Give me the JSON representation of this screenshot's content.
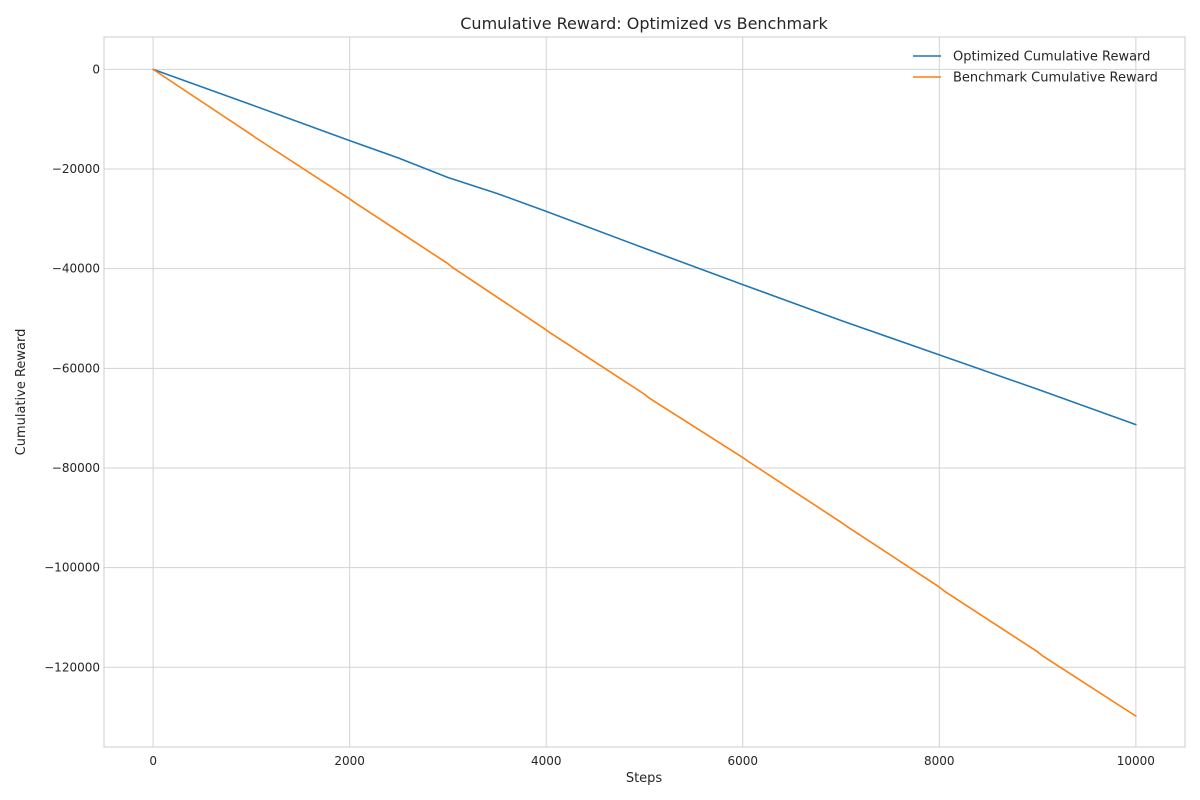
{
  "chart_data": {
    "type": "line",
    "title": "Cumulative Reward: Optimized vs Benchmark",
    "xlabel": "Steps",
    "ylabel": "Cumulative Reward",
    "xlim": [
      -500,
      10500
    ],
    "ylim": [
      -136000,
      6500
    ],
    "xticks": [
      0,
      2000,
      4000,
      6000,
      8000,
      10000
    ],
    "xtick_labels": [
      "0",
      "2000",
      "4000",
      "6000",
      "8000",
      "10000"
    ],
    "yticks": [
      0,
      -20000,
      -40000,
      -60000,
      -80000,
      -100000,
      -120000
    ],
    "ytick_labels": [
      "0",
      "−20000",
      "−40000",
      "−60000",
      "−80000",
      "−100000",
      "−120000"
    ],
    "grid": true,
    "legend_position": "top-right",
    "series": [
      {
        "name": "Optimized Cumulative Reward",
        "color": "#1f77b4",
        "x": [
          0,
          1000,
          2000,
          2500,
          3000,
          3500,
          4000,
          5000,
          6000,
          7000,
          8000,
          9000,
          10000
        ],
        "y": [
          0,
          -7100,
          -14300,
          -17800,
          -21700,
          -24900,
          -28500,
          -35900,
          -43200,
          -50400,
          -57300,
          -64200,
          -71300
        ]
      },
      {
        "name": "Benchmark Cumulative Reward",
        "color": "#ff7f0e",
        "x": [
          0,
          1000,
          1050,
          2000,
          2050,
          3000,
          3050,
          4000,
          4050,
          5000,
          5050,
          6000,
          6050,
          7000,
          7050,
          8000,
          8050,
          9000,
          9050,
          10000
        ],
        "y": [
          0,
          -13100,
          -13800,
          -26000,
          -26700,
          -39000,
          -39800,
          -52300,
          -53000,
          -65200,
          -66000,
          -77900,
          -78600,
          -90900,
          -91600,
          -103900,
          -104700,
          -116900,
          -117700,
          -129800
        ]
      }
    ]
  }
}
